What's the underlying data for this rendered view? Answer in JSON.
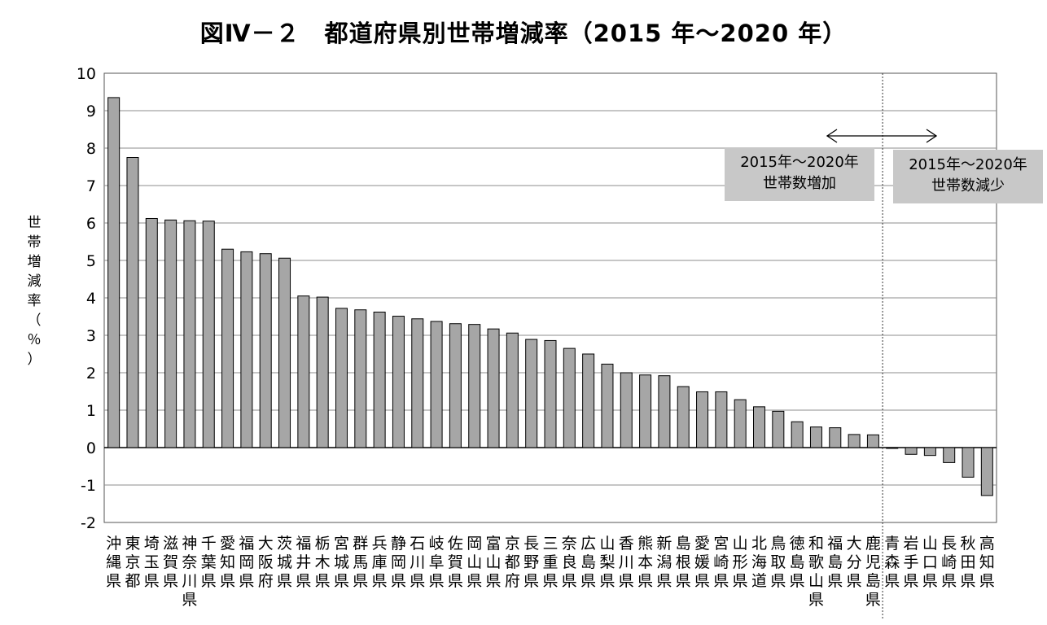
{
  "chart_data": {
    "type": "bar",
    "title": "図Ⅳ－２　都道府県別世帯増減率（2015 年～2020 年）",
    "ylabel": "世帯増減率（％）",
    "xlabel": "",
    "ylim": [
      -2,
      10
    ],
    "yticks": [
      10,
      9,
      8,
      7,
      6,
      5,
      4,
      3,
      2,
      1,
      0,
      -1,
      -2
    ],
    "grid": true,
    "bar_color": "#a6a6a6",
    "categories": [
      "沖縄県",
      "東京都",
      "埼玉県",
      "滋賀県",
      "神奈川県",
      "千葉県",
      "愛知県",
      "福岡県",
      "大阪府",
      "茨城県",
      "福井県",
      "栃木県",
      "宮城県",
      "群馬県",
      "兵庫県",
      "静岡県",
      "石川県",
      "岐阜県",
      "佐賀県",
      "岡山県",
      "富山県",
      "京都府",
      "長野県",
      "三重県",
      "奈良県",
      "広島県",
      "山梨県",
      "香川県",
      "熊本県",
      "新潟県",
      "島根県",
      "愛媛県",
      "宮崎県",
      "山形県",
      "北海道",
      "鳥取県",
      "徳島県",
      "和歌山県",
      "福島県",
      "大分県",
      "鹿児島県",
      "青森県",
      "岩手県",
      "山口県",
      "長崎県",
      "秋田県",
      "高知県"
    ],
    "values": [
      9.35,
      7.75,
      6.12,
      6.08,
      6.06,
      6.05,
      5.3,
      5.23,
      5.18,
      5.06,
      4.05,
      4.02,
      3.72,
      3.68,
      3.62,
      3.51,
      3.44,
      3.37,
      3.31,
      3.29,
      3.17,
      3.06,
      2.89,
      2.86,
      2.65,
      2.5,
      2.23,
      2.0,
      1.94,
      1.92,
      1.63,
      1.49,
      1.49,
      1.28,
      1.09,
      0.97,
      0.69,
      0.55,
      0.53,
      0.35,
      0.34,
      -0.02,
      -0.18,
      -0.21,
      -0.4,
      -0.79,
      -1.28
    ],
    "annotations": {
      "increase_box": [
        "2015年～2020年",
        "世帯数増加"
      ],
      "decrease_box": [
        "2015年～2020年",
        "世帯数減少"
      ]
    },
    "divider_after_index": 40
  }
}
